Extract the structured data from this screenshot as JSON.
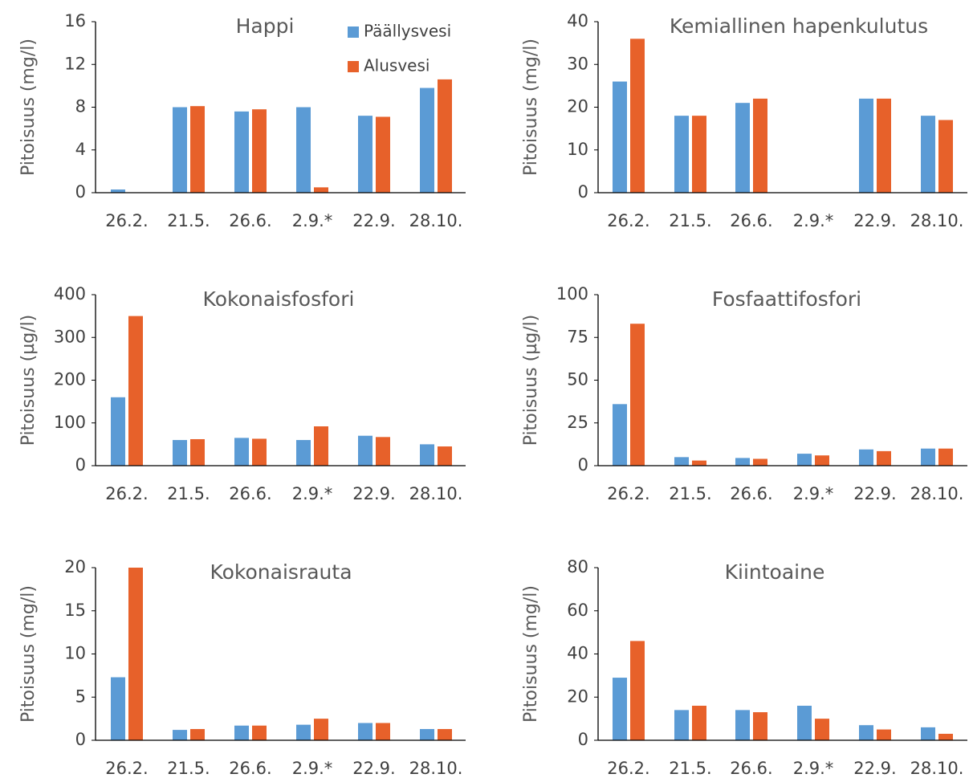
{
  "colors": {
    "surface": "#5B9BD5",
    "bottom": "#E7612A",
    "axis": "#000000",
    "text": "#404040"
  },
  "legend": {
    "items": [
      "Päällysvesi",
      "Alusvesi"
    ],
    "placement": "top-right of first chart"
  },
  "chart_data": [
    {
      "type": "bar",
      "title": "Happi",
      "ylabel": "Pitoisuus (mg/l)",
      "ylim": [
        0,
        16
      ],
      "yticks": [
        0,
        4,
        8,
        12,
        16
      ],
      "categories": [
        "26.2.",
        "21.5.",
        "26.6.",
        "2.9.*",
        "22.9.",
        "28.10."
      ],
      "series": [
        {
          "name": "Päällysvesi",
          "values": [
            0.3,
            8.0,
            7.6,
            8.0,
            7.2,
            9.8
          ]
        },
        {
          "name": "Alusvesi",
          "values": [
            0,
            8.1,
            7.8,
            0.5,
            7.1,
            10.6
          ]
        }
      ]
    },
    {
      "type": "bar",
      "title": "Kemiallinen hapenkulutus",
      "ylabel": "Pitoisuus (mg/l)",
      "ylim": [
        0,
        40
      ],
      "yticks": [
        0,
        10,
        20,
        30,
        40
      ],
      "categories": [
        "26.2.",
        "21.5.",
        "26.6.",
        "2.9.*",
        "22.9.",
        "28.10."
      ],
      "series": [
        {
          "name": "Päällysvesi",
          "values": [
            26,
            18,
            21,
            null,
            22,
            18
          ]
        },
        {
          "name": "Alusvesi",
          "values": [
            36,
            18,
            22,
            null,
            22,
            17
          ]
        }
      ]
    },
    {
      "type": "bar",
      "title": "Kokonaisfosfori",
      "ylabel": "Pitoisuus (µg/l)",
      "ylim": [
        0,
        400
      ],
      "yticks": [
        0,
        100,
        200,
        300,
        400
      ],
      "categories": [
        "26.2.",
        "21.5.",
        "26.6.",
        "2.9.*",
        "22.9.",
        "28.10."
      ],
      "series": [
        {
          "name": "Päällysvesi",
          "values": [
            160,
            60,
            65,
            60,
            70,
            50
          ]
        },
        {
          "name": "Alusvesi",
          "values": [
            350,
            62,
            63,
            92,
            67,
            45
          ]
        }
      ]
    },
    {
      "type": "bar",
      "title": "Fosfaattifosfori",
      "ylabel": "Pitoisuus (µg/l)",
      "ylim": [
        0,
        100
      ],
      "yticks": [
        0,
        25,
        50,
        75,
        100
      ],
      "categories": [
        "26.2.",
        "21.5.",
        "26.6.",
        "2.9.*",
        "22.9.",
        "28.10."
      ],
      "series": [
        {
          "name": "Päällysvesi",
          "values": [
            36,
            5,
            4.5,
            7,
            9.5,
            10
          ]
        },
        {
          "name": "Alusvesi",
          "values": [
            83,
            3,
            4,
            6,
            8.5,
            10
          ]
        }
      ]
    },
    {
      "type": "bar",
      "title": "Kokonaisrauta",
      "ylabel": "Pitoisuus (mg/l)",
      "ylim": [
        0,
        20
      ],
      "yticks": [
        0,
        5,
        10,
        15,
        20
      ],
      "categories": [
        "26.2.",
        "21.5.",
        "26.6.",
        "2.9.*",
        "22.9.",
        "28.10."
      ],
      "series": [
        {
          "name": "Päällysvesi",
          "values": [
            7.3,
            1.2,
            1.7,
            1.8,
            2.0,
            1.3
          ]
        },
        {
          "name": "Alusvesi",
          "values": [
            20,
            1.3,
            1.7,
            2.5,
            2.0,
            1.3
          ]
        }
      ]
    },
    {
      "type": "bar",
      "title": "Kiintoaine",
      "ylabel": "Pitoisuus (mg/l)",
      "ylim": [
        0,
        80
      ],
      "yticks": [
        0,
        20,
        40,
        60,
        80
      ],
      "categories": [
        "26.2.",
        "21.5.",
        "26.6.",
        "2.9.*",
        "22.9.",
        "28.10."
      ],
      "series": [
        {
          "name": "Päällysvesi",
          "values": [
            29,
            14,
            14,
            16,
            7,
            6
          ]
        },
        {
          "name": "Alusvesi",
          "values": [
            46,
            16,
            13,
            10,
            5,
            3
          ]
        }
      ]
    }
  ]
}
